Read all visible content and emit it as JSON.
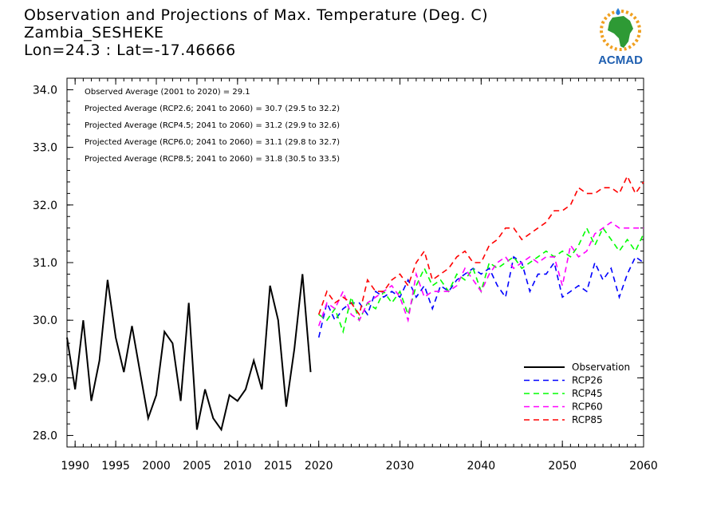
{
  "header": {
    "title_line1": "Observation and Projections of Max. Temperature (Deg. C)",
    "title_line2": "Zambia_SESHEKE",
    "title_line3": "Lon=24.3 : Lat=-17.46666",
    "logo_text": "ACMAD"
  },
  "notes": [
    "Observed Average (2001 to 2020) = 29.1",
    "Projected Average (RCP2.6; 2041 to 2060) = 30.7 (29.5 to 32.2)",
    "Projected Average (RCP4.5; 2041 to 2060) = 31.2 (29.9 to 32.6)",
    "Projected Average (RCP6.0; 2041 to 2060) = 31.1 (29.8 to 32.7)",
    "Projected Average (RCP8.5; 2041 to 2060) = 31.8 (30.5 to 33.5)"
  ],
  "chart_data": {
    "type": "line",
    "title": "Observation and Projections of Max. Temperature (Deg. C)",
    "xlim": [
      1989,
      2060
    ],
    "ylim": [
      27.8,
      34.2
    ],
    "x_ticks": [
      {
        "value": 1990,
        "label": "1990"
      },
      {
        "value": 1995,
        "label": "1995"
      },
      {
        "value": 2000,
        "label": "2000"
      },
      {
        "value": 2005,
        "label": "2005"
      },
      {
        "value": 2010,
        "label": "2010"
      },
      {
        "value": 2015,
        "label": "2015"
      },
      {
        "value": 2020,
        "label": "2020"
      },
      {
        "value": 2030,
        "label": "2030"
      },
      {
        "value": 2040,
        "label": "2040"
      },
      {
        "value": 2050,
        "label": "2050"
      },
      {
        "value": 2060,
        "label": "2060"
      }
    ],
    "y_ticks": [
      {
        "value": 28.0,
        "label": "28.0"
      },
      {
        "value": 29.0,
        "label": "29.0"
      },
      {
        "value": 30.0,
        "label": "30.0"
      },
      {
        "value": 31.0,
        "label": "31.0"
      },
      {
        "value": 32.0,
        "label": "32.0"
      },
      {
        "value": 33.0,
        "label": "33.0"
      },
      {
        "value": 34.0,
        "label": "34.0"
      }
    ],
    "legend_position": "bottom-right",
    "series": [
      {
        "name": "Observation",
        "color": "#000000",
        "dashed": false,
        "x": [
          1989,
          1990,
          1991,
          1992,
          1993,
          1994,
          1995,
          1996,
          1997,
          1998,
          1999,
          2000,
          2001,
          2002,
          2003,
          2004,
          2005,
          2006,
          2007,
          2008,
          2009,
          2010,
          2011,
          2012,
          2013,
          2014,
          2015,
          2016,
          2017,
          2018,
          2019
        ],
        "y": [
          29.7,
          28.8,
          30.0,
          28.6,
          29.3,
          30.7,
          29.7,
          29.1,
          29.9,
          29.1,
          28.3,
          28.7,
          29.8,
          29.6,
          28.6,
          30.3,
          28.1,
          28.8,
          28.3,
          28.1,
          28.7,
          28.6,
          28.8,
          29.3,
          28.8,
          30.6,
          30.0,
          28.5,
          29.5,
          30.8,
          29.1
        ]
      },
      {
        "name": "RCP26",
        "color": "#0000ff",
        "dashed": true,
        "x": [
          2020,
          2021,
          2022,
          2023,
          2024,
          2025,
          2026,
          2027,
          2028,
          2029,
          2030,
          2031,
          2032,
          2033,
          2034,
          2035,
          2036,
          2037,
          2038,
          2039,
          2040,
          2041,
          2042,
          2043,
          2044,
          2045,
          2046,
          2047,
          2048,
          2049,
          2050,
          2051,
          2052,
          2053,
          2054,
          2055,
          2056,
          2057,
          2058,
          2059,
          2060
        ],
        "y": [
          29.7,
          30.3,
          30.0,
          30.2,
          30.3,
          30.3,
          30.1,
          30.5,
          30.4,
          30.5,
          30.4,
          30.7,
          30.4,
          30.6,
          30.2,
          30.6,
          30.5,
          30.7,
          30.8,
          30.9,
          30.8,
          30.9,
          30.6,
          30.4,
          31.1,
          31.0,
          30.5,
          30.8,
          30.8,
          31.0,
          30.4,
          30.5,
          30.6,
          30.5,
          31.0,
          30.7,
          30.9,
          30.4,
          30.8,
          31.1,
          31.0
        ]
      },
      {
        "name": "RCP45",
        "color": "#00ff00",
        "dashed": true,
        "x": [
          2020,
          2021,
          2022,
          2023,
          2024,
          2025,
          2026,
          2027,
          2028,
          2029,
          2030,
          2031,
          2032,
          2033,
          2034,
          2035,
          2036,
          2037,
          2038,
          2039,
          2040,
          2041,
          2042,
          2043,
          2044,
          2045,
          2046,
          2047,
          2048,
          2049,
          2050,
          2051,
          2052,
          2053,
          2054,
          2055,
          2056,
          2057,
          2058,
          2059,
          2060
        ],
        "y": [
          30.1,
          30.0,
          30.2,
          29.8,
          30.4,
          30.0,
          30.3,
          30.2,
          30.5,
          30.3,
          30.5,
          30.1,
          30.6,
          30.9,
          30.6,
          30.7,
          30.5,
          30.8,
          30.7,
          30.9,
          30.5,
          31.0,
          30.9,
          31.0,
          31.1,
          30.9,
          31.0,
          31.1,
          31.2,
          31.1,
          31.2,
          31.1,
          31.3,
          31.6,
          31.3,
          31.6,
          31.4,
          31.2,
          31.4,
          31.2,
          31.5
        ]
      },
      {
        "name": "RCP60",
        "color": "#ff00ff",
        "dashed": true,
        "x": [
          2020,
          2021,
          2022,
          2023,
          2024,
          2025,
          2026,
          2027,
          2028,
          2029,
          2030,
          2031,
          2032,
          2033,
          2034,
          2035,
          2036,
          2037,
          2038,
          2039,
          2040,
          2041,
          2042,
          2043,
          2044,
          2045,
          2046,
          2047,
          2048,
          2049,
          2050,
          2051,
          2052,
          2053,
          2054,
          2055,
          2056,
          2057,
          2058,
          2059,
          2060
        ],
        "y": [
          29.9,
          30.3,
          30.2,
          30.5,
          30.1,
          30.0,
          30.3,
          30.4,
          30.5,
          30.6,
          30.4,
          30.0,
          30.8,
          30.4,
          30.5,
          30.5,
          30.5,
          30.6,
          30.9,
          30.7,
          30.5,
          30.8,
          31.0,
          31.1,
          30.9,
          31.0,
          31.1,
          31.0,
          31.1,
          31.1,
          30.6,
          31.3,
          31.1,
          31.2,
          31.5,
          31.6,
          31.7,
          31.6,
          31.6,
          31.6,
          31.6
        ]
      },
      {
        "name": "RCP85",
        "color": "#ff0000",
        "dashed": true,
        "x": [
          2020,
          2021,
          2022,
          2023,
          2024,
          2025,
          2026,
          2027,
          2028,
          2029,
          2030,
          2031,
          2032,
          2033,
          2034,
          2035,
          2036,
          2037,
          2038,
          2039,
          2040,
          2041,
          2042,
          2043,
          2044,
          2045,
          2046,
          2047,
          2048,
          2049,
          2050,
          2051,
          2052,
          2053,
          2054,
          2055,
          2056,
          2057,
          2058,
          2059,
          2060
        ],
        "y": [
          30.1,
          30.5,
          30.3,
          30.4,
          30.3,
          30.1,
          30.7,
          30.5,
          30.5,
          30.7,
          30.8,
          30.6,
          31.0,
          31.2,
          30.7,
          30.8,
          30.9,
          31.1,
          31.2,
          31.0,
          31.0,
          31.3,
          31.4,
          31.6,
          31.6,
          31.4,
          31.5,
          31.6,
          31.7,
          31.9,
          31.9,
          32.0,
          32.3,
          32.2,
          32.2,
          32.3,
          32.3,
          32.2,
          32.5,
          32.2,
          32.4
        ]
      }
    ]
  }
}
